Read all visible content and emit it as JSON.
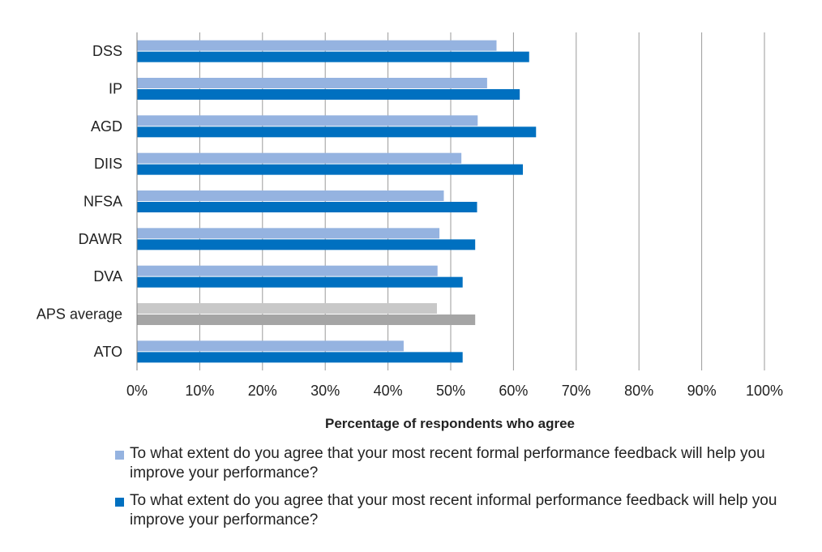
{
  "chart_data": {
    "type": "bar",
    "orientation": "horizontal",
    "categories": [
      "DSS",
      "IP",
      "AGD",
      "DIIS",
      "NFSA",
      "DAWR",
      "DVA",
      "APS average",
      "ATO"
    ],
    "series": [
      {
        "name": "To what extent do you agree that your most recent formal performance feedback will help you improve your performance?",
        "values": [
          57.3,
          55.8,
          54.3,
          51.7,
          48.9,
          48.2,
          47.9,
          47.8,
          42.5
        ],
        "color": "#95B3E0",
        "highlight_color": "#C8C8C8"
      },
      {
        "name": "To what extent do you agree that your most recent informal performance feedback will help you improve your performance?",
        "values": [
          62.5,
          61.0,
          63.6,
          61.5,
          54.2,
          53.9,
          51.9,
          53.9,
          51.9
        ],
        "color": "#0070C0",
        "highlight_color": "#A5A5A5"
      }
    ],
    "highlight_category": "APS average",
    "xlabel": "Percentage of respondents who agree",
    "ylabel": "",
    "xlim": [
      0,
      100
    ],
    "x_ticks": [
      "0%",
      "10%",
      "20%",
      "30%",
      "40%",
      "50%",
      "60%",
      "70%",
      "80%",
      "90%",
      "100%"
    ],
    "grid": "vertical",
    "legend_position": "bottom"
  }
}
